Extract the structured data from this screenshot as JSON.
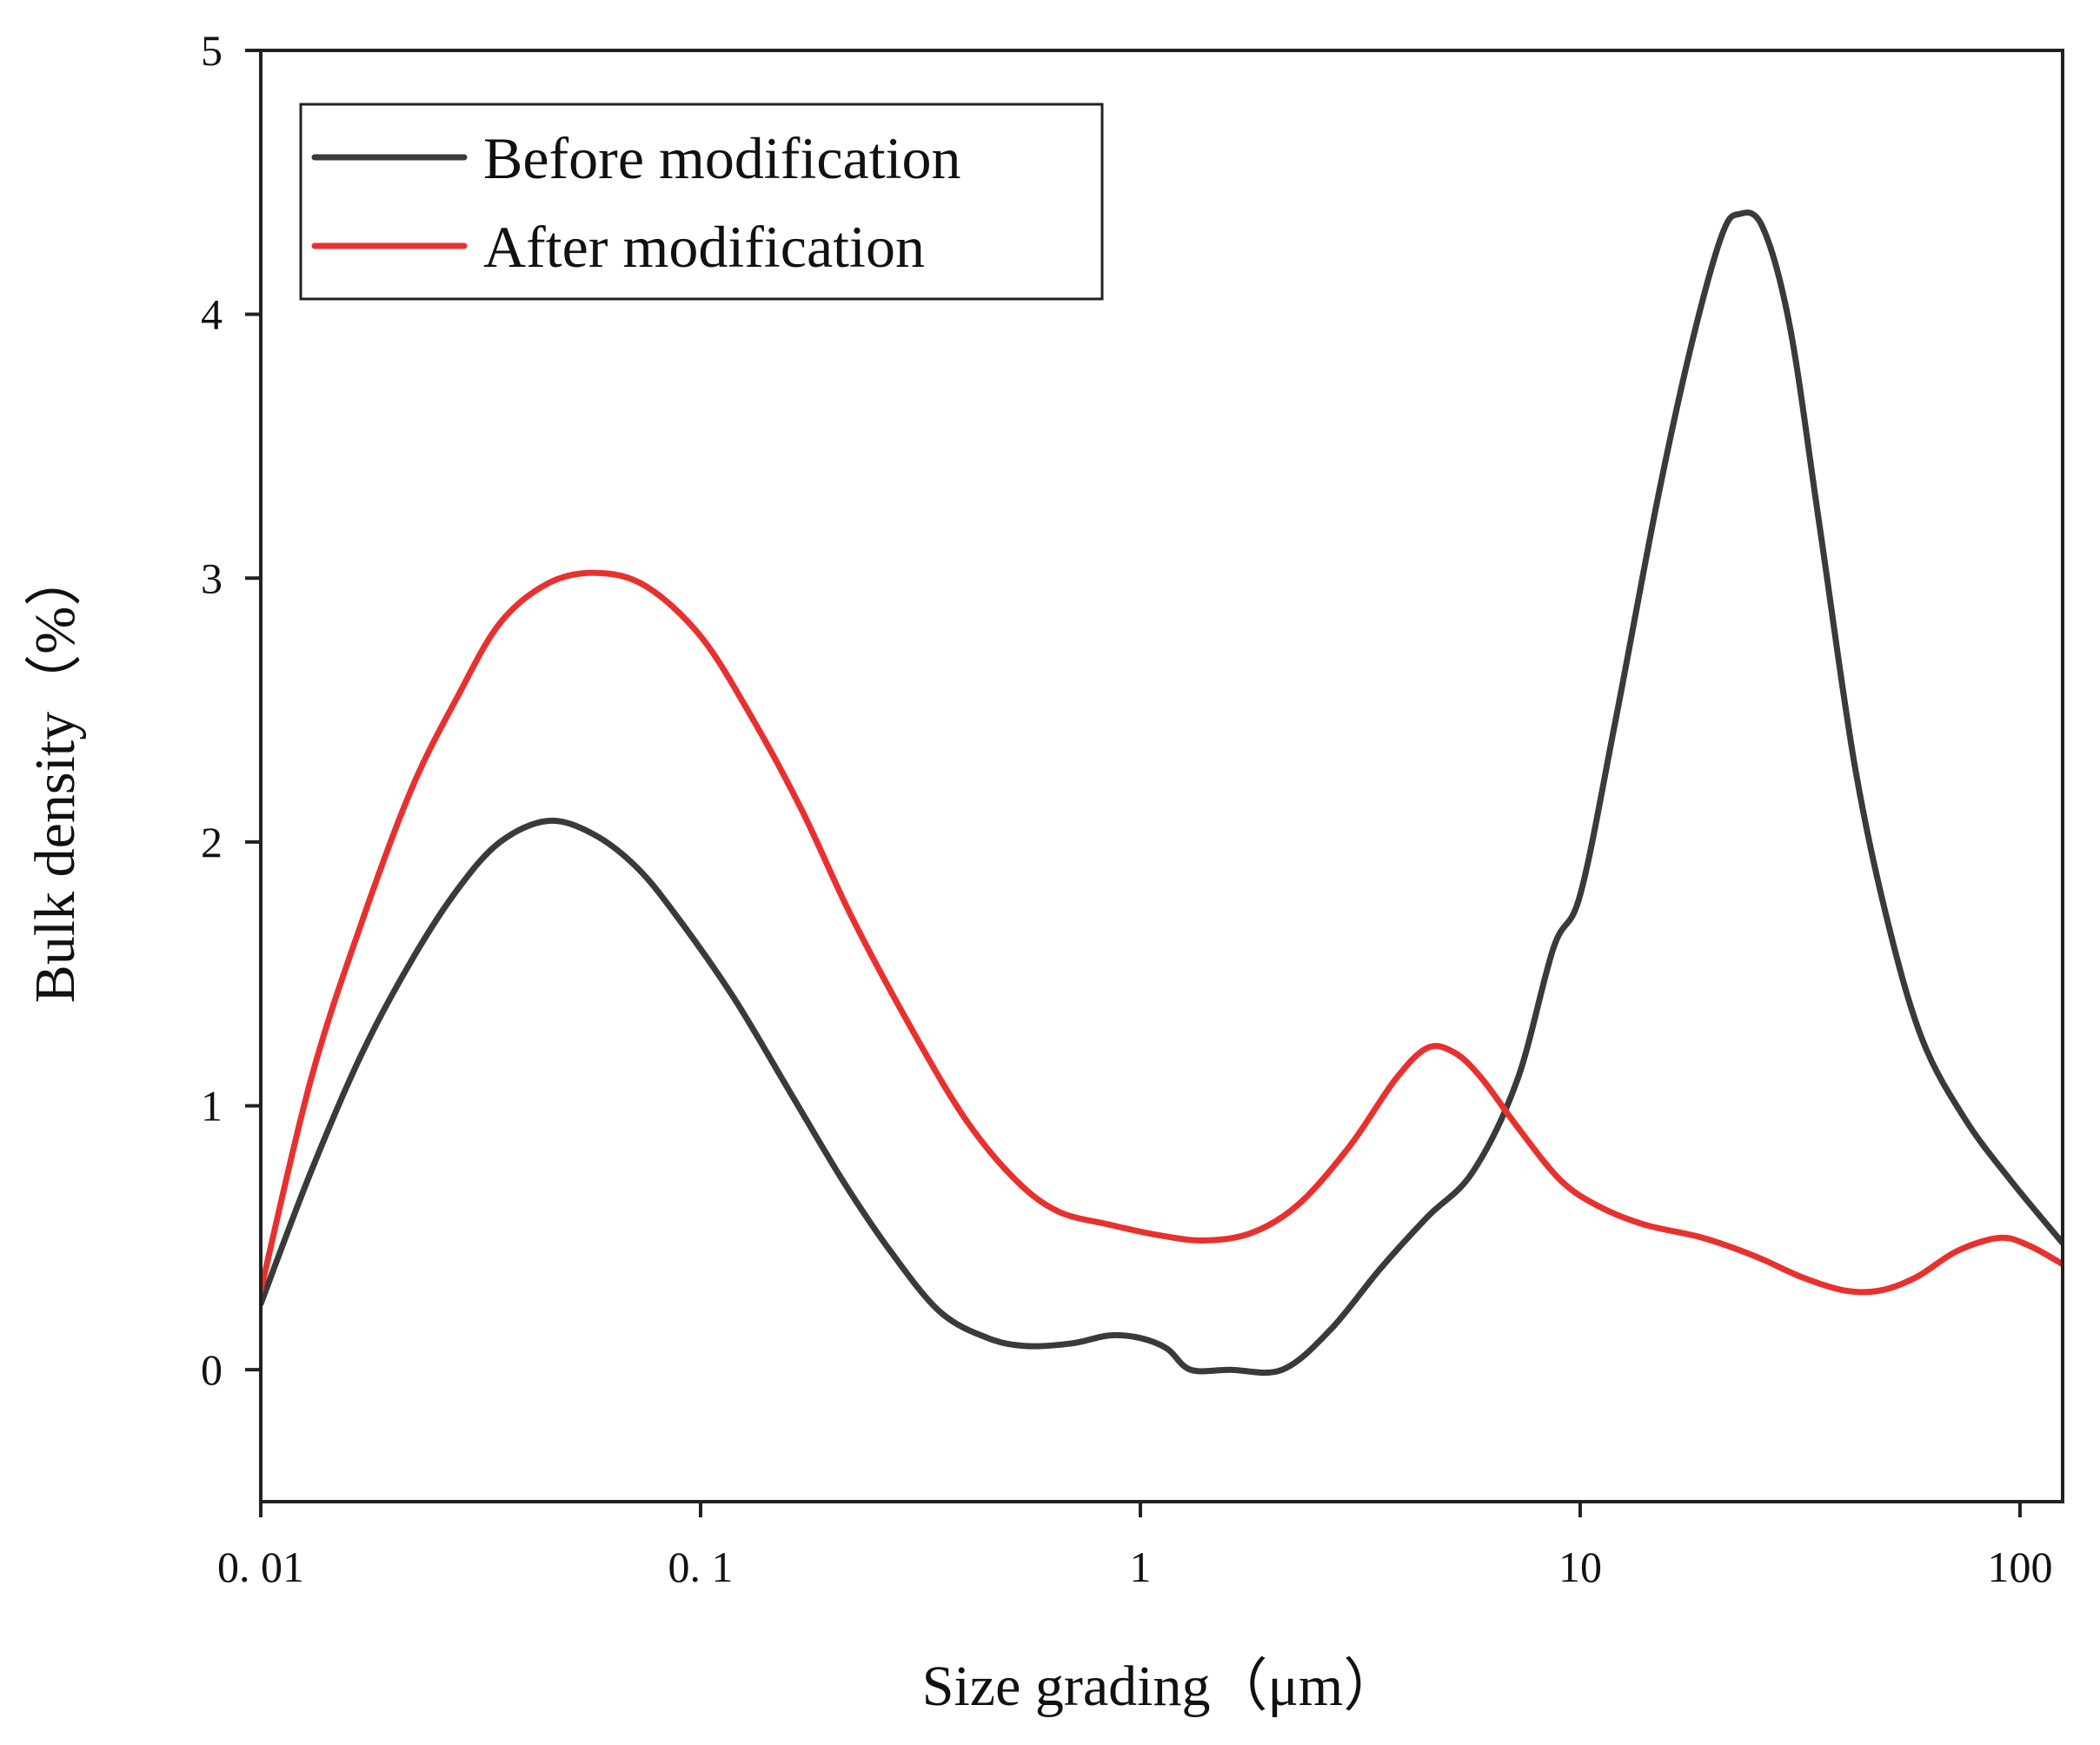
{
  "chart_data": {
    "type": "line",
    "title": "",
    "xlabel": "Size grading（μm）",
    "ylabel": "Bulk density（%）",
    "xscale": "log",
    "xlim": [
      0.01,
      125
    ],
    "ylim": [
      -0.5,
      5
    ],
    "xticks": [
      {
        "value": 0.01,
        "label": "0. 01"
      },
      {
        "value": 0.1,
        "label": "0. 1"
      },
      {
        "value": 1,
        "label": "1"
      },
      {
        "value": 10,
        "label": "10"
      },
      {
        "value": 100,
        "label": "100"
      }
    ],
    "yticks": [
      {
        "value": 0,
        "label": "0"
      },
      {
        "value": 1,
        "label": "1"
      },
      {
        "value": 2,
        "label": "2"
      },
      {
        "value": 3,
        "label": "3"
      },
      {
        "value": 4,
        "label": "4"
      },
      {
        "value": 5,
        "label": "5"
      }
    ],
    "grid": false,
    "legend_position": "top-left",
    "series": [
      {
        "name": "Before modification",
        "color": "#3a3a3a",
        "points": [
          [
            0.01,
            0.25
          ],
          [
            0.013,
            0.75
          ],
          [
            0.017,
            1.2
          ],
          [
            0.022,
            1.55
          ],
          [
            0.028,
            1.82
          ],
          [
            0.035,
            2.0
          ],
          [
            0.045,
            2.08
          ],
          [
            0.057,
            2.03
          ],
          [
            0.072,
            1.9
          ],
          [
            0.09,
            1.7
          ],
          [
            0.12,
            1.4
          ],
          [
            0.16,
            1.05
          ],
          [
            0.21,
            0.72
          ],
          [
            0.27,
            0.45
          ],
          [
            0.35,
            0.22
          ],
          [
            0.45,
            0.12
          ],
          [
            0.55,
            0.09
          ],
          [
            0.7,
            0.1
          ],
          [
            0.85,
            0.13
          ],
          [
            1.0,
            0.12
          ],
          [
            1.15,
            0.08
          ],
          [
            1.3,
            0.0
          ],
          [
            1.6,
            0.0
          ],
          [
            2.1,
            0.0
          ],
          [
            2.7,
            0.15
          ],
          [
            3.5,
            0.38
          ],
          [
            4.5,
            0.58
          ],
          [
            5.7,
            0.75
          ],
          [
            7.2,
            1.1
          ],
          [
            8.7,
            1.6
          ],
          [
            10,
            1.8
          ],
          [
            12,
            2.45
          ],
          [
            15,
            3.3
          ],
          [
            18,
            3.9
          ],
          [
            21,
            4.3
          ],
          [
            23,
            4.38
          ],
          [
            26,
            4.33
          ],
          [
            30,
            3.95
          ],
          [
            35,
            3.2
          ],
          [
            42,
            2.3
          ],
          [
            50,
            1.7
          ],
          [
            60,
            1.25
          ],
          [
            75,
            0.95
          ],
          [
            95,
            0.72
          ],
          [
            125,
            0.48
          ]
        ]
      },
      {
        "name": "After modification",
        "color": "#e8312f",
        "points": [
          [
            0.01,
            0.3
          ],
          [
            0.013,
            1.1
          ],
          [
            0.017,
            1.7
          ],
          [
            0.022,
            2.2
          ],
          [
            0.028,
            2.55
          ],
          [
            0.035,
            2.83
          ],
          [
            0.045,
            2.98
          ],
          [
            0.058,
            3.02
          ],
          [
            0.075,
            2.97
          ],
          [
            0.1,
            2.78
          ],
          [
            0.13,
            2.48
          ],
          [
            0.17,
            2.12
          ],
          [
            0.22,
            1.72
          ],
          [
            0.3,
            1.3
          ],
          [
            0.4,
            0.95
          ],
          [
            0.52,
            0.72
          ],
          [
            0.65,
            0.6
          ],
          [
            0.85,
            0.55
          ],
          [
            1.1,
            0.51
          ],
          [
            1.4,
            0.49
          ],
          [
            1.8,
            0.52
          ],
          [
            2.3,
            0.63
          ],
          [
            3.0,
            0.85
          ],
          [
            3.8,
            1.1
          ],
          [
            4.5,
            1.22
          ],
          [
            5.2,
            1.2
          ],
          [
            6.0,
            1.1
          ],
          [
            7.2,
            0.92
          ],
          [
            9.0,
            0.72
          ],
          [
            11,
            0.62
          ],
          [
            14,
            0.55
          ],
          [
            19,
            0.5
          ],
          [
            25,
            0.43
          ],
          [
            32,
            0.35
          ],
          [
            40,
            0.3
          ],
          [
            48,
            0.3
          ],
          [
            58,
            0.35
          ],
          [
            72,
            0.45
          ],
          [
            90,
            0.5
          ],
          [
            105,
            0.47
          ],
          [
            125,
            0.4
          ]
        ]
      }
    ]
  }
}
